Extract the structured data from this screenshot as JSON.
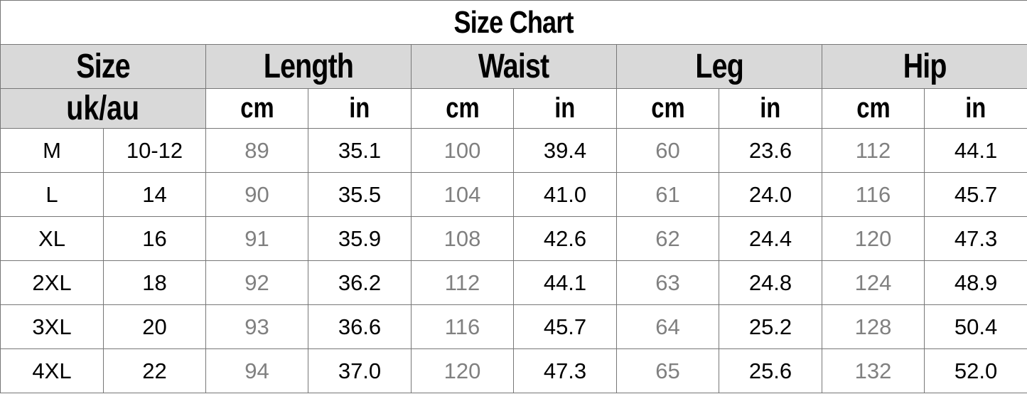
{
  "title": "Size Chart",
  "header": {
    "size": "Size",
    "uk_au": "uk/au",
    "groups": [
      "Length",
      "Waist",
      "Leg",
      "Hip"
    ],
    "cm": "cm",
    "in": "in"
  },
  "rows": [
    [
      "M",
      "10-12",
      "89",
      "35.1",
      "100",
      "39.4",
      "60",
      "23.6",
      "112",
      "44.1"
    ],
    [
      "L",
      "14",
      "90",
      "35.5",
      "104",
      "41.0",
      "61",
      "24.0",
      "116",
      "45.7"
    ],
    [
      "XL",
      "16",
      "91",
      "35.9",
      "108",
      "42.6",
      "62",
      "24.4",
      "120",
      "47.3"
    ],
    [
      "2XL",
      "18",
      "92",
      "36.2",
      "112",
      "44.1",
      "63",
      "24.8",
      "124",
      "48.9"
    ],
    [
      "3XL",
      "20",
      "93",
      "36.6",
      "116",
      "45.7",
      "64",
      "25.2",
      "128",
      "50.4"
    ],
    [
      "4XL",
      "22",
      "94",
      "37.0",
      "120",
      "47.3",
      "65",
      "25.6",
      "132",
      "52.0"
    ]
  ],
  "colors": {
    "header_bg": "#d9d9d9",
    "cm_text": "#808080",
    "in_text": "#000000",
    "border": "#777777"
  }
}
